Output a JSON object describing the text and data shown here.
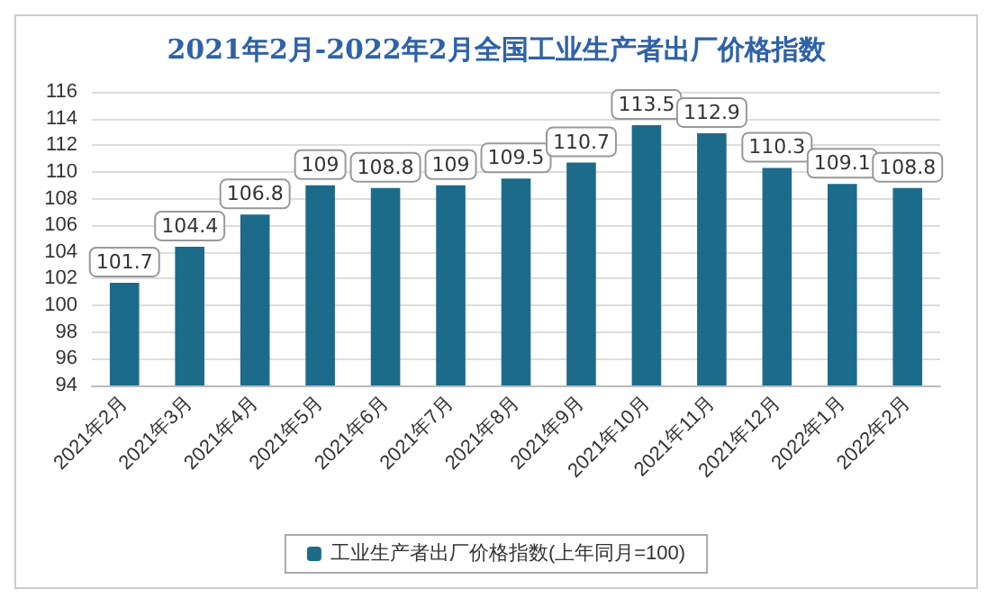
{
  "chart_data": {
    "type": "bar",
    "title": "2021年2月-2022年2月全国工业生产者出厂价格指数",
    "categories": [
      "2021年2月",
      "2021年3月",
      "2021年4月",
      "2021年5月",
      "2021年6月",
      "2021年7月",
      "2021年8月",
      "2021年9月",
      "2021年10月",
      "2021年11月",
      "2021年12月",
      "2022年1月",
      "2022年2月"
    ],
    "series": [
      {
        "name": "工业生产者出厂价格指数(上年同月=100)",
        "color": "#1d6b8a",
        "values": [
          101.7,
          104.4,
          106.8,
          109,
          108.8,
          109,
          109.5,
          110.7,
          113.5,
          112.9,
          110.3,
          109.1,
          108.8
        ]
      }
    ],
    "ylim": [
      94,
      116
    ],
    "yticks": [
      94,
      96,
      98,
      100,
      102,
      104,
      106,
      108,
      110,
      112,
      114,
      116
    ],
    "grid": "y",
    "legend": "bottom",
    "data_labels": true
  }
}
